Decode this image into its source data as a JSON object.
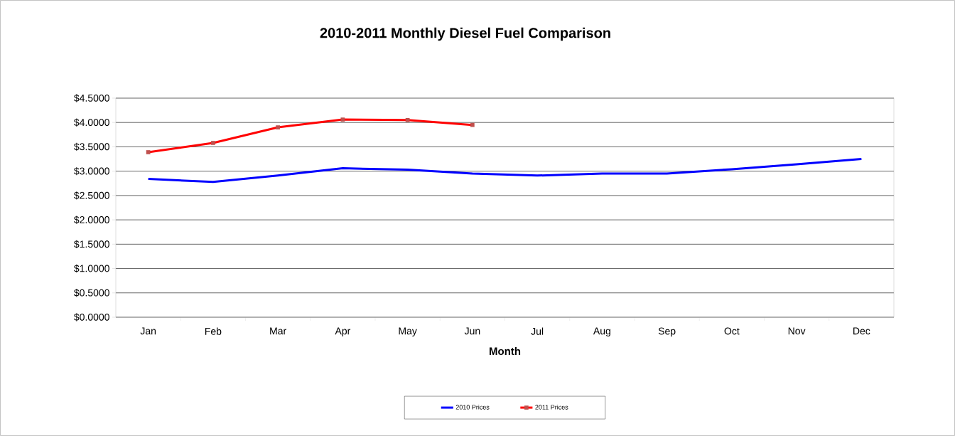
{
  "chart_data": {
    "type": "line",
    "title": "2010-2011 Monthly Diesel Fuel Comparison",
    "xlabel": "Month",
    "categories": [
      "Jan",
      "Feb",
      "Mar",
      "Apr",
      "May",
      "Jun",
      "Jul",
      "Aug",
      "Sep",
      "Oct",
      "Nov",
      "Dec"
    ],
    "series": [
      {
        "name": "2010 Prices",
        "color": "#0000ff",
        "marker": "none",
        "values": [
          2.84,
          2.78,
          2.91,
          3.06,
          3.03,
          2.95,
          2.91,
          2.95,
          2.95,
          3.04,
          3.14,
          3.25
        ]
      },
      {
        "name": "2011 Prices",
        "color": "#ff0000",
        "marker": "square",
        "values": [
          3.39,
          3.58,
          3.9,
          4.06,
          4.05,
          3.95,
          null,
          null,
          null,
          null,
          null,
          null
        ]
      }
    ],
    "ylim": [
      0,
      4.5
    ],
    "yticks": [
      {
        "value": 0,
        "label": "$0.0000"
      },
      {
        "value": 0.5,
        "label": "$0.5000"
      },
      {
        "value": 1,
        "label": "$1.0000"
      },
      {
        "value": 1.5,
        "label": "$1.5000"
      },
      {
        "value": 2,
        "label": "$2.0000"
      },
      {
        "value": 2.5,
        "label": "$2.5000"
      },
      {
        "value": 3,
        "label": "$3.0000"
      },
      {
        "value": 3.5,
        "label": "$3.5000"
      },
      {
        "value": 4,
        "label": "$4.0000"
      },
      {
        "value": 4.5,
        "label": "$4.5000"
      }
    ],
    "grid": "y",
    "legend": "bottom"
  }
}
